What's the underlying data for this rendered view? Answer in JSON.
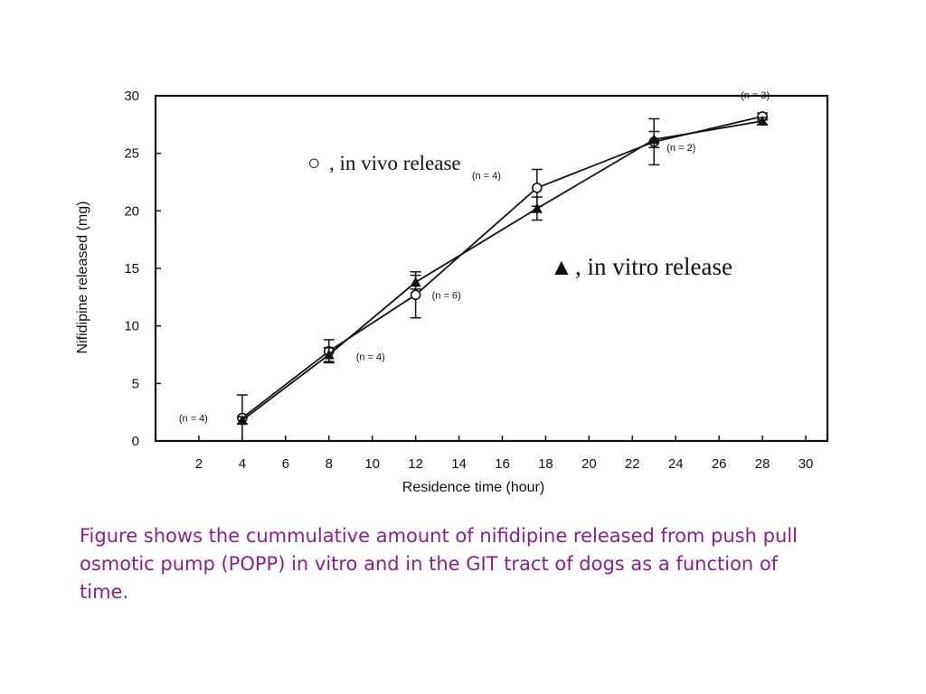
{
  "chart_data": {
    "type": "line",
    "xlabel": "Residence time (hour)",
    "ylabel": "Nifidipine released (mg)",
    "xlim": [
      0,
      31
    ],
    "ylim": [
      0,
      30
    ],
    "x_ticks": [
      2,
      4,
      6,
      8,
      10,
      12,
      14,
      16,
      18,
      20,
      22,
      24,
      26,
      28,
      30
    ],
    "y_ticks": [
      0,
      5,
      10,
      15,
      20,
      25,
      30
    ],
    "series": [
      {
        "name": "in vivo release",
        "marker": "circle",
        "x": [
          4,
          8,
          12,
          17.6,
          23,
          28
        ],
        "y": [
          2,
          7.8,
          12.7,
          22,
          26,
          28.2
        ],
        "err": [
          2,
          1,
          2,
          1.6,
          2,
          0.3
        ]
      },
      {
        "name": "in vitro release",
        "marker": "triangle",
        "x": [
          4,
          8,
          12,
          17.6,
          23,
          28
        ],
        "y": [
          1.8,
          7.5,
          13.8,
          20.2,
          26.2,
          27.8
        ],
        "err": [
          0.3,
          0.6,
          0.6,
          1,
          0.7,
          0.3
        ]
      }
    ],
    "point_labels": [
      {
        "text": "(n = 4)",
        "x": 4,
        "y": 2
      },
      {
        "text": "(n = 4)",
        "x": 8,
        "y": 7.5
      },
      {
        "text": "(n = 6)",
        "x": 12,
        "y": 12.7
      },
      {
        "text": "(n = 4)",
        "x": 17.6,
        "y": 22
      },
      {
        "text": "(n = 2)",
        "x": 23,
        "y": 26
      },
      {
        "text": "(n = 3)",
        "x": 28,
        "y": 28.2
      }
    ],
    "legend": [
      {
        "symbol": "○",
        "label": ", in vivo release"
      },
      {
        "symbol": "▲",
        "label": ", in vitro release"
      }
    ],
    "grid": false
  },
  "caption": "Figure shows the cummulative amount of nifidipine released from push pull osmotic pump (POPP) in vitro and in the GIT tract of dogs as a function of time."
}
